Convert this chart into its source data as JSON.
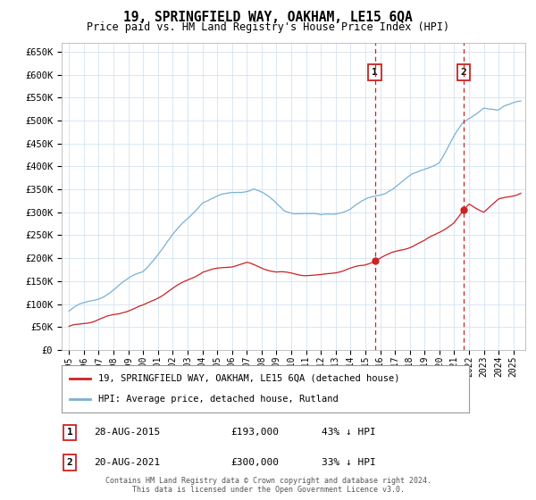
{
  "title": "19, SPRINGFIELD WAY, OAKHAM, LE15 6QA",
  "subtitle": "Price paid vs. HM Land Registry's House Price Index (HPI)",
  "hpi_color": "#7ab0d4",
  "price_color": "#cc2222",
  "background_color": "#ffffff",
  "grid_color": "#ccddee",
  "ylim": [
    0,
    670000
  ],
  "yticks": [
    0,
    50000,
    100000,
    150000,
    200000,
    250000,
    300000,
    350000,
    400000,
    450000,
    500000,
    550000,
    600000,
    650000
  ],
  "ytick_labels": [
    "£0",
    "£50K",
    "£100K",
    "£150K",
    "£200K",
    "£250K",
    "£300K",
    "£350K",
    "£400K",
    "£450K",
    "£500K",
    "£550K",
    "£600K",
    "£650K"
  ],
  "xlim_start": 1994.5,
  "xlim_end": 2025.8,
  "sale1_year": 2015.65,
  "sale1_price": 193000,
  "sale1_label": "1",
  "sale1_date": "28-AUG-2015",
  "sale1_pct": "43% ↓ HPI",
  "sale2_year": 2021.63,
  "sale2_price": 300000,
  "sale2_label": "2",
  "sale2_date": "20-AUG-2021",
  "sale2_pct": "33% ↓ HPI",
  "legend_line1": "19, SPRINGFIELD WAY, OAKHAM, LE15 6QA (detached house)",
  "legend_line2": "HPI: Average price, detached house, Rutland",
  "footer": "Contains HM Land Registry data © Crown copyright and database right 2024.\nThis data is licensed under the Open Government Licence v3.0.",
  "marker_box_color": "#cc2222",
  "sale1_dot_price": 193000,
  "sale2_dot_price": 300000
}
